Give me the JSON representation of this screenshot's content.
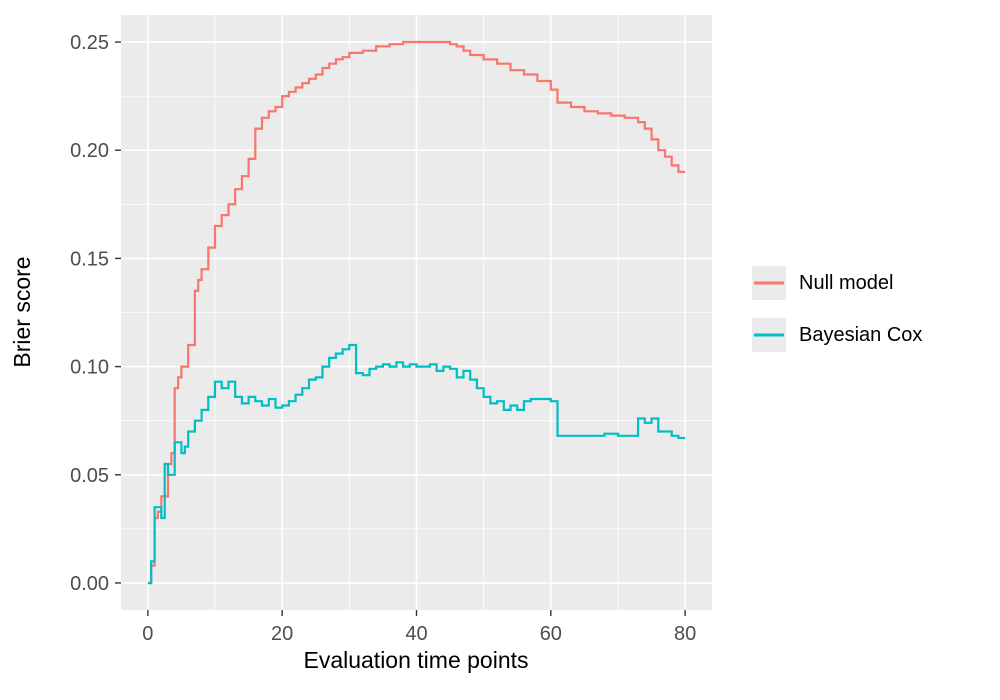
{
  "figure": {
    "background": "#FFFFFF"
  },
  "chart_data": {
    "type": "line",
    "subtype": "step",
    "title": "",
    "xlabel": "Evaluation time points",
    "ylabel": "Brier score",
    "xlim": [
      0,
      80
    ],
    "ylim": [
      0,
      0.25
    ],
    "x_domain": [
      -4,
      84
    ],
    "y_domain": [
      -0.0125,
      0.2625
    ],
    "x_ticks": {
      "values": [
        0,
        20,
        40,
        60,
        80
      ],
      "labels": [
        "0",
        "20",
        "40",
        "60",
        "80"
      ]
    },
    "y_ticks": {
      "values": [
        0,
        0.05,
        0.1,
        0.15,
        0.2,
        0.25
      ],
      "labels": [
        "0.00",
        "0.05",
        "0.10",
        "0.15",
        "0.20",
        "0.25"
      ]
    },
    "x_minor_ticks": [
      10,
      30,
      50,
      70
    ],
    "y_minor_ticks": [
      0.025,
      0.075,
      0.125,
      0.175,
      0.225
    ],
    "grid": true,
    "panel_background": "#EBEBEB",
    "gridline_color": "#FFFFFF",
    "tick_label_color": "#4D4D4D",
    "tick_mark_color": "#333333",
    "legend": {
      "position": "right",
      "key_fill": "#EBEBEB"
    },
    "series": [
      {
        "name": "Null model",
        "color": "#F8766D",
        "x": [
          0,
          0.5,
          1,
          1.5,
          2,
          3,
          3.5,
          4,
          4.5,
          5,
          6,
          7,
          7.5,
          8,
          9,
          10,
          11,
          12,
          13,
          14,
          15,
          16,
          17,
          18,
          19,
          20,
          21,
          22,
          23,
          24,
          25,
          26,
          27,
          28,
          29,
          30,
          32,
          34,
          36,
          38,
          40,
          44,
          45,
          46,
          47,
          48,
          50,
          52,
          54,
          56,
          58,
          60,
          61,
          63,
          65,
          67,
          69,
          71,
          73,
          74,
          75,
          76,
          77,
          78,
          79,
          80
        ],
        "y": [
          0,
          0.008,
          0.03,
          0.033,
          0.04,
          0.055,
          0.06,
          0.09,
          0.095,
          0.1,
          0.11,
          0.135,
          0.14,
          0.145,
          0.155,
          0.165,
          0.17,
          0.175,
          0.182,
          0.188,
          0.196,
          0.21,
          0.215,
          0.218,
          0.22,
          0.225,
          0.227,
          0.229,
          0.231,
          0.233,
          0.235,
          0.238,
          0.24,
          0.242,
          0.243,
          0.245,
          0.246,
          0.248,
          0.249,
          0.25,
          0.25,
          0.25,
          0.249,
          0.248,
          0.246,
          0.244,
          0.242,
          0.24,
          0.237,
          0.235,
          0.232,
          0.228,
          0.222,
          0.22,
          0.218,
          0.217,
          0.216,
          0.215,
          0.213,
          0.21,
          0.205,
          0.2,
          0.197,
          0.193,
          0.19,
          0.19
        ]
      },
      {
        "name": "Bayesian Cox",
        "color": "#00BFC4",
        "x": [
          0,
          0.5,
          1,
          2,
          2.5,
          3,
          4,
          5,
          5.5,
          6,
          7,
          8,
          9,
          10,
          11,
          12,
          13,
          14,
          15,
          16,
          17,
          18,
          19,
          20,
          21,
          22,
          23,
          24,
          25,
          26,
          27,
          28,
          29,
          30,
          31,
          32,
          33,
          34,
          35,
          36,
          37,
          38,
          39,
          40,
          42,
          43,
          44,
          45,
          46,
          47,
          48,
          49,
          50,
          51,
          52,
          53,
          54,
          55,
          56,
          57,
          58,
          60,
          61,
          63,
          65,
          67,
          68,
          70,
          72,
          73,
          74,
          75,
          76,
          77,
          78,
          79,
          80
        ],
        "y": [
          0,
          0.01,
          0.035,
          0.03,
          0.055,
          0.05,
          0.065,
          0.06,
          0.063,
          0.07,
          0.075,
          0.08,
          0.086,
          0.093,
          0.09,
          0.093,
          0.086,
          0.083,
          0.086,
          0.084,
          0.082,
          0.085,
          0.081,
          0.082,
          0.084,
          0.087,
          0.09,
          0.094,
          0.095,
          0.1,
          0.104,
          0.106,
          0.108,
          0.11,
          0.097,
          0.096,
          0.099,
          0.1,
          0.101,
          0.1,
          0.102,
          0.1,
          0.101,
          0.1,
          0.101,
          0.098,
          0.1,
          0.099,
          0.095,
          0.098,
          0.094,
          0.09,
          0.086,
          0.083,
          0.084,
          0.08,
          0.082,
          0.08,
          0.084,
          0.085,
          0.085,
          0.084,
          0.068,
          0.068,
          0.068,
          0.068,
          0.069,
          0.068,
          0.068,
          0.076,
          0.074,
          0.076,
          0.07,
          0.07,
          0.068,
          0.067,
          0.067
        ]
      }
    ]
  }
}
